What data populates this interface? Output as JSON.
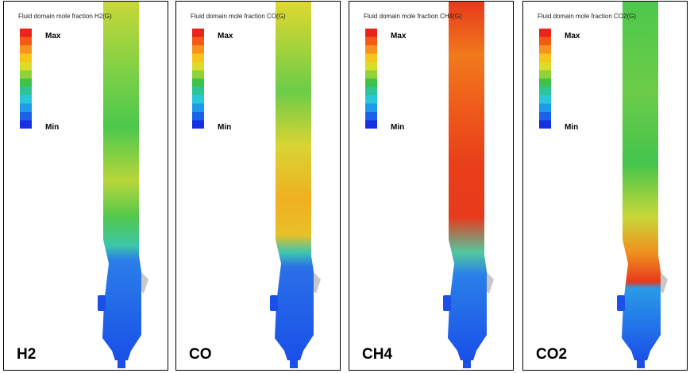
{
  "panels": [
    {
      "legend_title": "Fluid domain mole fraction H2(G)",
      "max_label": "Max",
      "min_label": "Min",
      "label": "H2"
    },
    {
      "legend_title": "Fluid domain mole fraction CO(G)",
      "max_label": "Max",
      "min_label": "Min",
      "label": "CO"
    },
    {
      "legend_title": "Fluid domain mole fraction CH4(G)",
      "max_label": "Max",
      "min_label": "Min",
      "label": "CH4"
    },
    {
      "legend_title": "Fluid domain mole fraction CO2(G)",
      "max_label": "Max",
      "min_label": "Min",
      "label": "CO2"
    }
  ]
}
